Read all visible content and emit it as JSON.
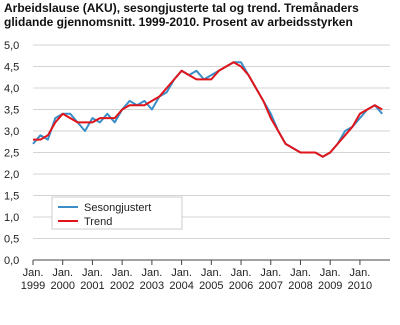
{
  "chart_data": {
    "type": "line",
    "title": "Arbeidslause (AKU), sesongjusterte tal og trend. Tremånaders glidande gjennomsnitt. 1999-2010. Prosent av arbeidsstyrken",
    "categories": [
      "Jan. 1999",
      null,
      null,
      null,
      "Jan. 2000",
      null,
      null,
      null,
      "Jan. 2001",
      null,
      null,
      null,
      "Jan. 2002",
      null,
      null,
      null,
      "Jan. 2003",
      null,
      null,
      null,
      "Jan. 2004",
      null,
      null,
      null,
      "Jan. 2005",
      null,
      null,
      null,
      "Jan. 2006",
      null,
      null,
      null,
      "Jan. 2007",
      null,
      null,
      null,
      "Jan. 2008",
      null,
      null,
      null,
      "Jan. 2009",
      null,
      null,
      null,
      "Jan. 2010",
      null,
      null,
      null
    ],
    "series": [
      {
        "name": "Sesongjustert",
        "color": "#3a8fc8",
        "values": [
          2.7,
          2.9,
          2.8,
          3.3,
          3.4,
          3.4,
          3.2,
          3.0,
          3.3,
          3.2,
          3.4,
          3.2,
          3.5,
          3.7,
          3.6,
          3.7,
          3.5,
          3.8,
          3.9,
          4.2,
          4.4,
          4.3,
          4.4,
          4.2,
          4.3,
          4.4,
          4.5,
          4.6,
          4.6,
          4.3,
          4.0,
          3.7,
          3.4,
          3.0,
          2.7,
          2.6,
          2.5,
          2.5,
          2.5,
          2.4,
          2.5,
          2.7,
          3.0,
          3.1,
          3.3,
          3.5,
          3.6,
          3.4
        ]
      },
      {
        "name": "Trend",
        "color": "#e0141a",
        "values": [
          2.8,
          2.8,
          2.9,
          3.2,
          3.4,
          3.3,
          3.2,
          3.2,
          3.2,
          3.3,
          3.3,
          3.3,
          3.5,
          3.6,
          3.6,
          3.6,
          3.7,
          3.8,
          4.0,
          4.2,
          4.4,
          4.3,
          4.2,
          4.2,
          4.2,
          4.4,
          4.5,
          4.6,
          4.5,
          4.3,
          4.0,
          3.7,
          3.3,
          3.0,
          2.7,
          2.6,
          2.5,
          2.5,
          2.5,
          2.4,
          2.5,
          2.7,
          2.9,
          3.1,
          3.4,
          3.5,
          3.6,
          3.5
        ]
      }
    ],
    "ylim": [
      0,
      5
    ],
    "yticks": [
      {
        "value": 0,
        "label": "0,0"
      },
      {
        "value": 0.5,
        "label": "0,5"
      },
      {
        "value": 1,
        "label": "1,0"
      },
      {
        "value": 1.5,
        "label": "1,5"
      },
      {
        "value": 2,
        "label": "2,0"
      },
      {
        "value": 2.5,
        "label": "2,5"
      },
      {
        "value": 3,
        "label": "3,0"
      },
      {
        "value": 3.5,
        "label": "3,5"
      },
      {
        "value": 4,
        "label": "4,0"
      },
      {
        "value": 4.5,
        "label": "4,5"
      },
      {
        "value": 5,
        "label": "5,0"
      }
    ],
    "grid": true
  }
}
